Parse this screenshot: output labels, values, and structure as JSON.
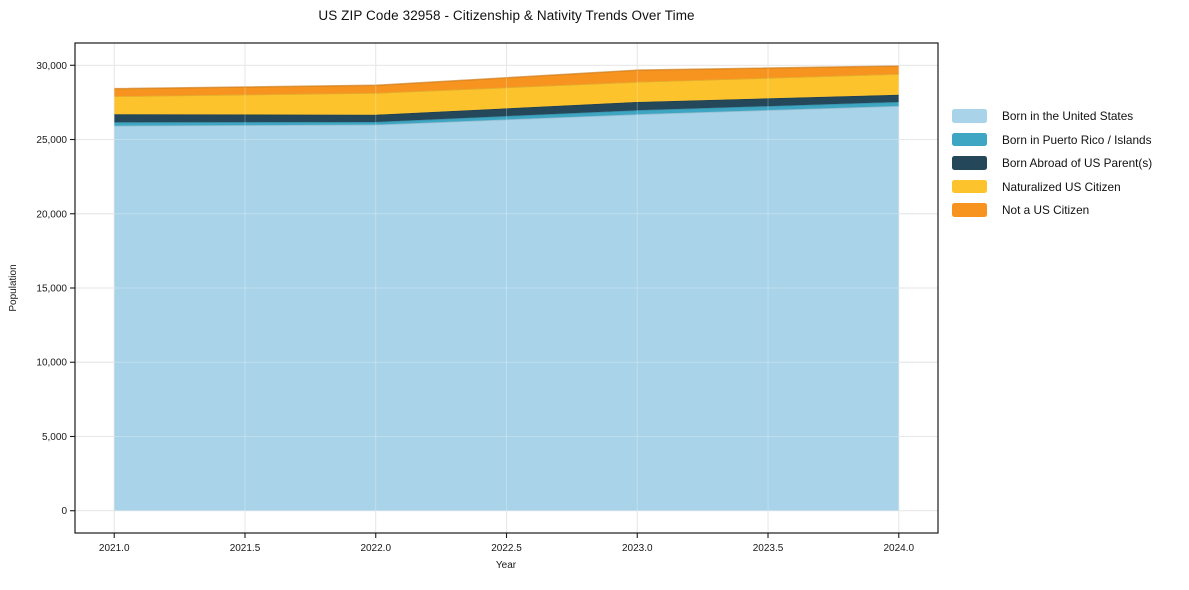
{
  "chart_data": {
    "type": "area",
    "stacked": true,
    "title": "US ZIP Code 32958 - Citizenship & Nativity Trends Over Time",
    "xlabel": "Year",
    "ylabel": "Population",
    "x": [
      2021,
      2022,
      2023,
      2024
    ],
    "series": [
      {
        "name": "Born in the United States",
        "color": "#a9d3e9",
        "values": [
          25930,
          26000,
          26700,
          27260
        ]
      },
      {
        "name": "Born in Puerto Rico / Islands",
        "color": "#3ea6c2",
        "values": [
          230,
          180,
          270,
          265
        ]
      },
      {
        "name": "Born Abroad of US Parent(s)",
        "color": "#24485a",
        "values": [
          540,
          490,
          560,
          490
        ]
      },
      {
        "name": "Naturalized US Citizen",
        "color": "#fcc32d",
        "values": [
          1215,
          1465,
          1350,
          1400
        ]
      },
      {
        "name": "Not a US Citizen",
        "color": "#f7941f",
        "values": [
          510,
          520,
          790,
          540
        ]
      }
    ],
    "xlim": [
      2020.85,
      2024.15
    ],
    "ylim": [
      -1500,
      31500
    ],
    "xticks": [
      2021.0,
      2021.5,
      2022.0,
      2022.5,
      2023.0,
      2023.5,
      2024.0
    ],
    "xtick_labels": [
      "2021.0",
      "2021.5",
      "2022.0",
      "2022.5",
      "2023.0",
      "2023.5",
      "2024.0"
    ],
    "yticks": [
      0,
      5000,
      10000,
      15000,
      20000,
      25000,
      30000
    ],
    "ytick_labels": [
      "0",
      "5,000",
      "10,000",
      "15,000",
      "20,000",
      "25,000",
      "30,000"
    ],
    "grid": true,
    "legend_position": "right"
  }
}
